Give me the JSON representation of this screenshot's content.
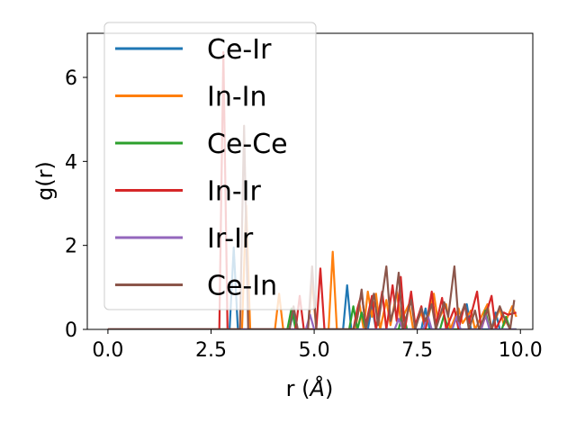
{
  "chart_data": {
    "type": "line",
    "xlabel_main": "r (",
    "xlabel_unit": "Å",
    "xlabel_end": ")",
    "ylabel": "g(r)",
    "xlim": [
      -0.5,
      10.3
    ],
    "ylim": [
      0,
      7.05
    ],
    "xticks": [
      {
        "value": 0,
        "label": "0.0"
      },
      {
        "value": 2.5,
        "label": "2.5"
      },
      {
        "value": 5,
        "label": "5.0"
      },
      {
        "value": 7.5,
        "label": "7.5"
      },
      {
        "value": 10,
        "label": "10.0"
      }
    ],
    "yticks": [
      {
        "value": 0,
        "label": "0"
      },
      {
        "value": 2,
        "label": "2"
      },
      {
        "value": 4,
        "label": "4"
      },
      {
        "value": 6,
        "label": "6"
      }
    ],
    "legend_position": "upper-left",
    "grid": false,
    "series": [
      {
        "name": "Ce-Ir",
        "color": "#1f77b4",
        "points": [
          [
            0,
            0
          ],
          [
            2.95,
            0
          ],
          [
            3.05,
            1.95
          ],
          [
            3.15,
            0
          ],
          [
            4.4,
            0
          ],
          [
            4.5,
            0.45
          ],
          [
            4.6,
            0
          ],
          [
            5.7,
            0
          ],
          [
            5.8,
            1.05
          ],
          [
            5.9,
            0
          ],
          [
            6.3,
            0
          ],
          [
            6.4,
            0.55
          ],
          [
            6.5,
            0
          ],
          [
            7.6,
            0
          ],
          [
            7.7,
            0.5
          ],
          [
            7.8,
            0
          ],
          [
            8.5,
            0
          ],
          [
            8.6,
            0.45
          ],
          [
            8.7,
            0.6
          ],
          [
            8.8,
            0
          ],
          [
            9.3,
            0
          ],
          [
            9.4,
            0.4
          ],
          [
            9.5,
            0
          ],
          [
            9.9,
            0
          ]
        ]
      },
      {
        "name": "In-In",
        "color": "#ff7f0e",
        "points": [
          [
            0,
            0
          ],
          [
            3.25,
            0
          ],
          [
            3.35,
            2.95
          ],
          [
            3.45,
            0
          ],
          [
            4.05,
            0
          ],
          [
            4.15,
            0.85
          ],
          [
            4.25,
            0
          ],
          [
            4.85,
            0
          ],
          [
            4.95,
            1.15
          ],
          [
            5.05,
            0
          ],
          [
            5.35,
            0
          ],
          [
            5.45,
            1.85
          ],
          [
            5.55,
            0
          ],
          [
            6.0,
            0
          ],
          [
            6.1,
            0.6
          ],
          [
            6.2,
            0
          ],
          [
            6.3,
            0.9
          ],
          [
            6.4,
            0.3
          ],
          [
            6.5,
            0.85
          ],
          [
            6.6,
            0
          ],
          [
            6.75,
            0.7
          ],
          [
            6.85,
            0.1
          ],
          [
            7.0,
            0.9
          ],
          [
            7.1,
            0.2
          ],
          [
            7.3,
            0.6
          ],
          [
            7.4,
            0
          ],
          [
            7.6,
            0.4
          ],
          [
            7.7,
            0
          ],
          [
            7.9,
            0.85
          ],
          [
            8.0,
            0.2
          ],
          [
            8.2,
            0.6
          ],
          [
            8.3,
            0
          ],
          [
            8.5,
            0.5
          ],
          [
            8.6,
            0.15
          ],
          [
            8.8,
            0.45
          ],
          [
            8.9,
            0
          ],
          [
            9.2,
            0.6
          ],
          [
            9.3,
            0
          ],
          [
            9.5,
            0.5
          ],
          [
            9.6,
            0.1
          ],
          [
            9.8,
            0.55
          ],
          [
            9.9,
            0.3
          ]
        ]
      },
      {
        "name": "Ce-Ce",
        "color": "#2ca02c",
        "points": [
          [
            0,
            0
          ],
          [
            4.35,
            0
          ],
          [
            4.45,
            0.5
          ],
          [
            4.55,
            0
          ],
          [
            5.85,
            0
          ],
          [
            5.95,
            0.55
          ],
          [
            6.05,
            0
          ],
          [
            6.15,
            0.4
          ],
          [
            6.25,
            0
          ],
          [
            7.05,
            0
          ],
          [
            7.15,
            0.45
          ],
          [
            7.25,
            0
          ],
          [
            8.05,
            0
          ],
          [
            8.15,
            0.35
          ],
          [
            8.25,
            0
          ],
          [
            9.05,
            0
          ],
          [
            9.15,
            0.45
          ],
          [
            9.25,
            0
          ],
          [
            9.55,
            0
          ],
          [
            9.65,
            0.3
          ],
          [
            9.75,
            0
          ],
          [
            9.9,
            0
          ]
        ]
      },
      {
        "name": "In-Ir",
        "color": "#d62728",
        "points": [
          [
            0,
            0
          ],
          [
            2.7,
            0
          ],
          [
            2.8,
            6.6
          ],
          [
            2.9,
            0
          ],
          [
            4.55,
            0
          ],
          [
            4.65,
            0.8
          ],
          [
            4.75,
            0
          ],
          [
            5.05,
            0
          ],
          [
            5.15,
            1.45
          ],
          [
            5.25,
            0
          ],
          [
            5.95,
            0
          ],
          [
            6.05,
            0.5
          ],
          [
            6.15,
            0.85
          ],
          [
            6.25,
            0.1
          ],
          [
            6.4,
            0.8
          ],
          [
            6.5,
            0
          ],
          [
            6.65,
            0.9
          ],
          [
            6.75,
            0
          ],
          [
            6.9,
            1.05
          ],
          [
            7.0,
            0.2
          ],
          [
            7.1,
            1.25
          ],
          [
            7.2,
            0
          ],
          [
            7.35,
            0.9
          ],
          [
            7.45,
            0.1
          ],
          [
            7.6,
            0.55
          ],
          [
            7.7,
            0
          ],
          [
            7.85,
            0.9
          ],
          [
            7.95,
            0.1
          ],
          [
            8.1,
            0.75
          ],
          [
            8.2,
            0
          ],
          [
            8.4,
            0.5
          ],
          [
            8.5,
            0
          ],
          [
            8.65,
            0.6
          ],
          [
            8.75,
            0.15
          ],
          [
            8.95,
            0.9
          ],
          [
            9.05,
            0
          ],
          [
            9.3,
            0.8
          ],
          [
            9.4,
            0
          ],
          [
            9.6,
            0.4
          ],
          [
            9.7,
            0.35
          ],
          [
            9.9,
            0.4
          ]
        ]
      },
      {
        "name": "Ir-Ir",
        "color": "#9467bd",
        "points": [
          [
            0,
            0
          ],
          [
            4.8,
            0
          ],
          [
            4.9,
            0.35
          ],
          [
            5.0,
            0
          ],
          [
            6.95,
            0
          ],
          [
            7.05,
            0.25
          ],
          [
            7.15,
            0
          ],
          [
            7.65,
            0
          ],
          [
            7.75,
            0.35
          ],
          [
            7.85,
            0
          ],
          [
            8.35,
            0
          ],
          [
            8.45,
            0.3
          ],
          [
            8.55,
            0
          ],
          [
            9.05,
            0
          ],
          [
            9.15,
            0.35
          ],
          [
            9.25,
            0
          ],
          [
            9.9,
            0
          ]
        ]
      },
      {
        "name": "Ce-In",
        "color": "#8c564b",
        "points": [
          [
            0,
            0
          ],
          [
            3.2,
            0
          ],
          [
            3.3,
            4.85
          ],
          [
            3.4,
            0
          ],
          [
            4.4,
            0
          ],
          [
            4.5,
            0.55
          ],
          [
            4.6,
            0
          ],
          [
            4.85,
            0
          ],
          [
            4.95,
            1.5
          ],
          [
            5.05,
            0
          ],
          [
            5.95,
            0
          ],
          [
            6.05,
            0.3
          ],
          [
            6.15,
            0.95
          ],
          [
            6.25,
            0
          ],
          [
            6.45,
            0.85
          ],
          [
            6.55,
            0.1
          ],
          [
            6.75,
            1.5
          ],
          [
            6.85,
            0.2
          ],
          [
            6.95,
            0.55
          ],
          [
            7.05,
            1.35
          ],
          [
            7.15,
            0
          ],
          [
            7.35,
            0.7
          ],
          [
            7.45,
            0
          ],
          [
            7.6,
            0.5
          ],
          [
            7.7,
            0.2
          ],
          [
            7.85,
            0.6
          ],
          [
            7.95,
            0
          ],
          [
            8.15,
            0.65
          ],
          [
            8.25,
            0.3
          ],
          [
            8.4,
            1.5
          ],
          [
            8.5,
            0.2
          ],
          [
            8.65,
            0.6
          ],
          [
            8.75,
            0
          ],
          [
            8.9,
            0.45
          ],
          [
            9.0,
            0
          ],
          [
            9.2,
            0.5
          ],
          [
            9.3,
            0
          ],
          [
            9.5,
            0.55
          ],
          [
            9.6,
            0.3
          ],
          [
            9.75,
            0
          ],
          [
            9.85,
            0.7
          ]
        ]
      }
    ]
  }
}
